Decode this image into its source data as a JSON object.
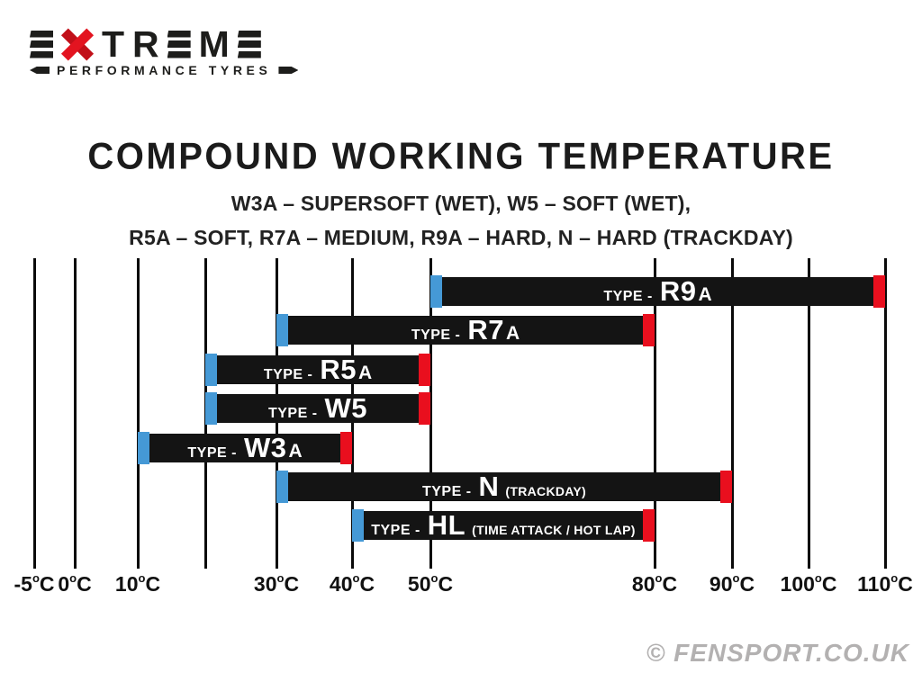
{
  "logo": {
    "brand": "EXTREME",
    "letters": [
      {
        "char": "E",
        "style": "bars"
      },
      {
        "char": "X",
        "style": "red-x"
      },
      {
        "char": "T",
        "style": "text"
      },
      {
        "char": "R",
        "style": "text"
      },
      {
        "char": "E",
        "style": "bars"
      },
      {
        "char": "M",
        "style": "text"
      },
      {
        "char": "E",
        "style": "bars"
      }
    ],
    "tagline": "PERFORMANCE TYRES"
  },
  "watermark": "© FENSPORT.CO.UK",
  "chart_data": {
    "type": "bar",
    "orientation": "horizontal-range",
    "title": "COMPOUND WORKING TEMPERATURE",
    "subtitle_lines": [
      "W3A – SUPERSOFT (WET), W5 – SOFT (WET),",
      "R5A – SOFT, R7A – MEDIUM, R9A – HARD, N – HARD (TRACKDAY)"
    ],
    "unit": "°C",
    "axis": {
      "range": [
        -5,
        110
      ],
      "gridline_temps": [
        -5,
        0,
        10,
        20,
        30,
        40,
        50,
        80,
        90,
        100,
        110
      ],
      "tick_labels": [
        {
          "temp": -5,
          "text": "-5"
        },
        {
          "temp": 0,
          "text": "0"
        },
        {
          "temp": 10,
          "text": "10"
        },
        {
          "temp": 30,
          "text": "30"
        },
        {
          "temp": 40,
          "text": "40"
        },
        {
          "temp": 50,
          "text": "50"
        },
        {
          "temp": 80,
          "text": "80"
        },
        {
          "temp": 90,
          "text": "90"
        },
        {
          "temp": 100,
          "text": "100"
        },
        {
          "temp": 110,
          "text": "110"
        }
      ],
      "unit_sup": "o",
      "unit_main": "C"
    },
    "series": [
      {
        "name": "R9A",
        "label_prefix": "TYPE -",
        "label_main": "R9",
        "label_small": "A",
        "label_paren": "",
        "start": 50,
        "end": 110
      },
      {
        "name": "R7A",
        "label_prefix": "TYPE -",
        "label_main": "R7",
        "label_small": "A",
        "label_paren": "",
        "start": 30,
        "end": 80
      },
      {
        "name": "R5A",
        "label_prefix": "TYPE -",
        "label_main": "R5",
        "label_small": "A",
        "label_paren": "",
        "start": 20,
        "end": 50
      },
      {
        "name": "W5",
        "label_prefix": "TYPE -",
        "label_main": "W5",
        "label_small": "",
        "label_paren": "",
        "start": 20,
        "end": 50
      },
      {
        "name": "W3A",
        "label_prefix": "TYPE -",
        "label_main": "W3",
        "label_small": "A",
        "label_paren": "",
        "start": 10,
        "end": 40
      },
      {
        "name": "N",
        "label_prefix": "TYPE -",
        "label_main": "N",
        "label_small": "",
        "label_paren": "(TRACKDAY)",
        "start": 30,
        "end": 90
      },
      {
        "name": "HL",
        "label_prefix": "TYPE -",
        "label_main": "HL",
        "label_small": "",
        "label_paren": "(TIME ATTACK / HOT LAP)",
        "start": 40,
        "end": 80
      }
    ],
    "colors": {
      "bar": "#141414",
      "start_tip": "#4599d6",
      "end_tip": "#e90f1e",
      "bar_text": "#ffffff"
    }
  }
}
